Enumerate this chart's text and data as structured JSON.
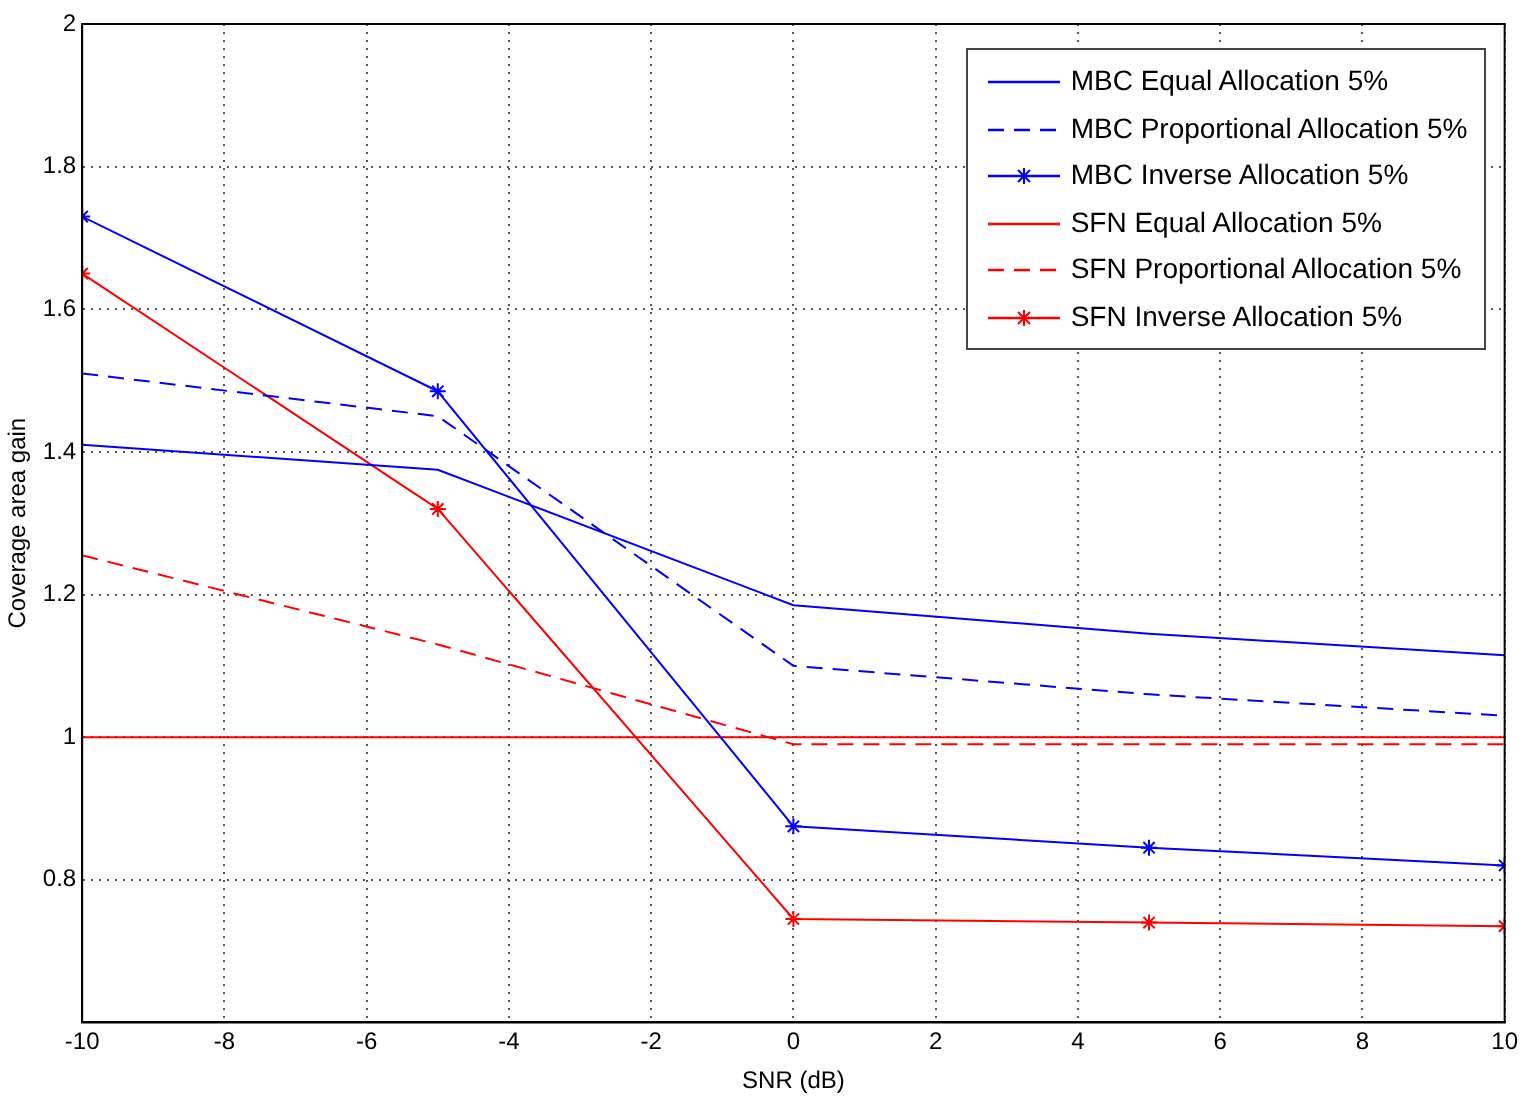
{
  "chart_data": {
    "type": "line",
    "xlabel": "SNR (dB)",
    "ylabel": "Coverage area gain",
    "x": [
      -10,
      -5,
      0,
      5,
      10
    ],
    "series": [
      {
        "name": "MBC Equal Allocation 5%",
        "color": "#0000ff",
        "line_style": "solid",
        "marker": "none",
        "values": [
          1.41,
          1.375,
          1.185,
          1.145,
          1.115
        ]
      },
      {
        "name": "MBC Proportional Allocation 5%",
        "color": "#0000ff",
        "line_style": "dashed",
        "marker": "none",
        "values": [
          1.51,
          1.45,
          1.1,
          1.06,
          1.03
        ]
      },
      {
        "name": "MBC Inverse Allocation 5%",
        "color": "#0000ff",
        "line_style": "solid",
        "marker": "cross",
        "values": [
          1.73,
          1.485,
          0.875,
          0.845,
          0.82
        ]
      },
      {
        "name": "SFN Equal Allocation 5%",
        "color": "#ff0000",
        "line_style": "solid",
        "marker": "none",
        "values": [
          1,
          1,
          1,
          1,
          1
        ]
      },
      {
        "name": "SFN Proportional Allocation 5%",
        "color": "#ff0000",
        "line_style": "dashed",
        "marker": "none",
        "values": [
          1.255,
          1.13,
          0.99,
          0.99,
          0.99
        ]
      },
      {
        "name": "SFN Inverse Allocation 5%",
        "color": "#ff0000",
        "line_style": "solid",
        "marker": "cross",
        "values": [
          1.65,
          1.32,
          0.745,
          0.74,
          0.735
        ]
      }
    ],
    "xlim": [
      -10,
      10
    ],
    "xticks": [
      -10,
      -8,
      -6,
      -4,
      -2,
      0,
      2,
      4,
      6,
      8,
      10
    ],
    "ylim": [
      0.6,
      2
    ],
    "yticks": [
      0.8,
      1,
      1.2,
      1.4,
      1.6,
      1.8,
      2
    ],
    "grid": true,
    "legend": "top right"
  }
}
